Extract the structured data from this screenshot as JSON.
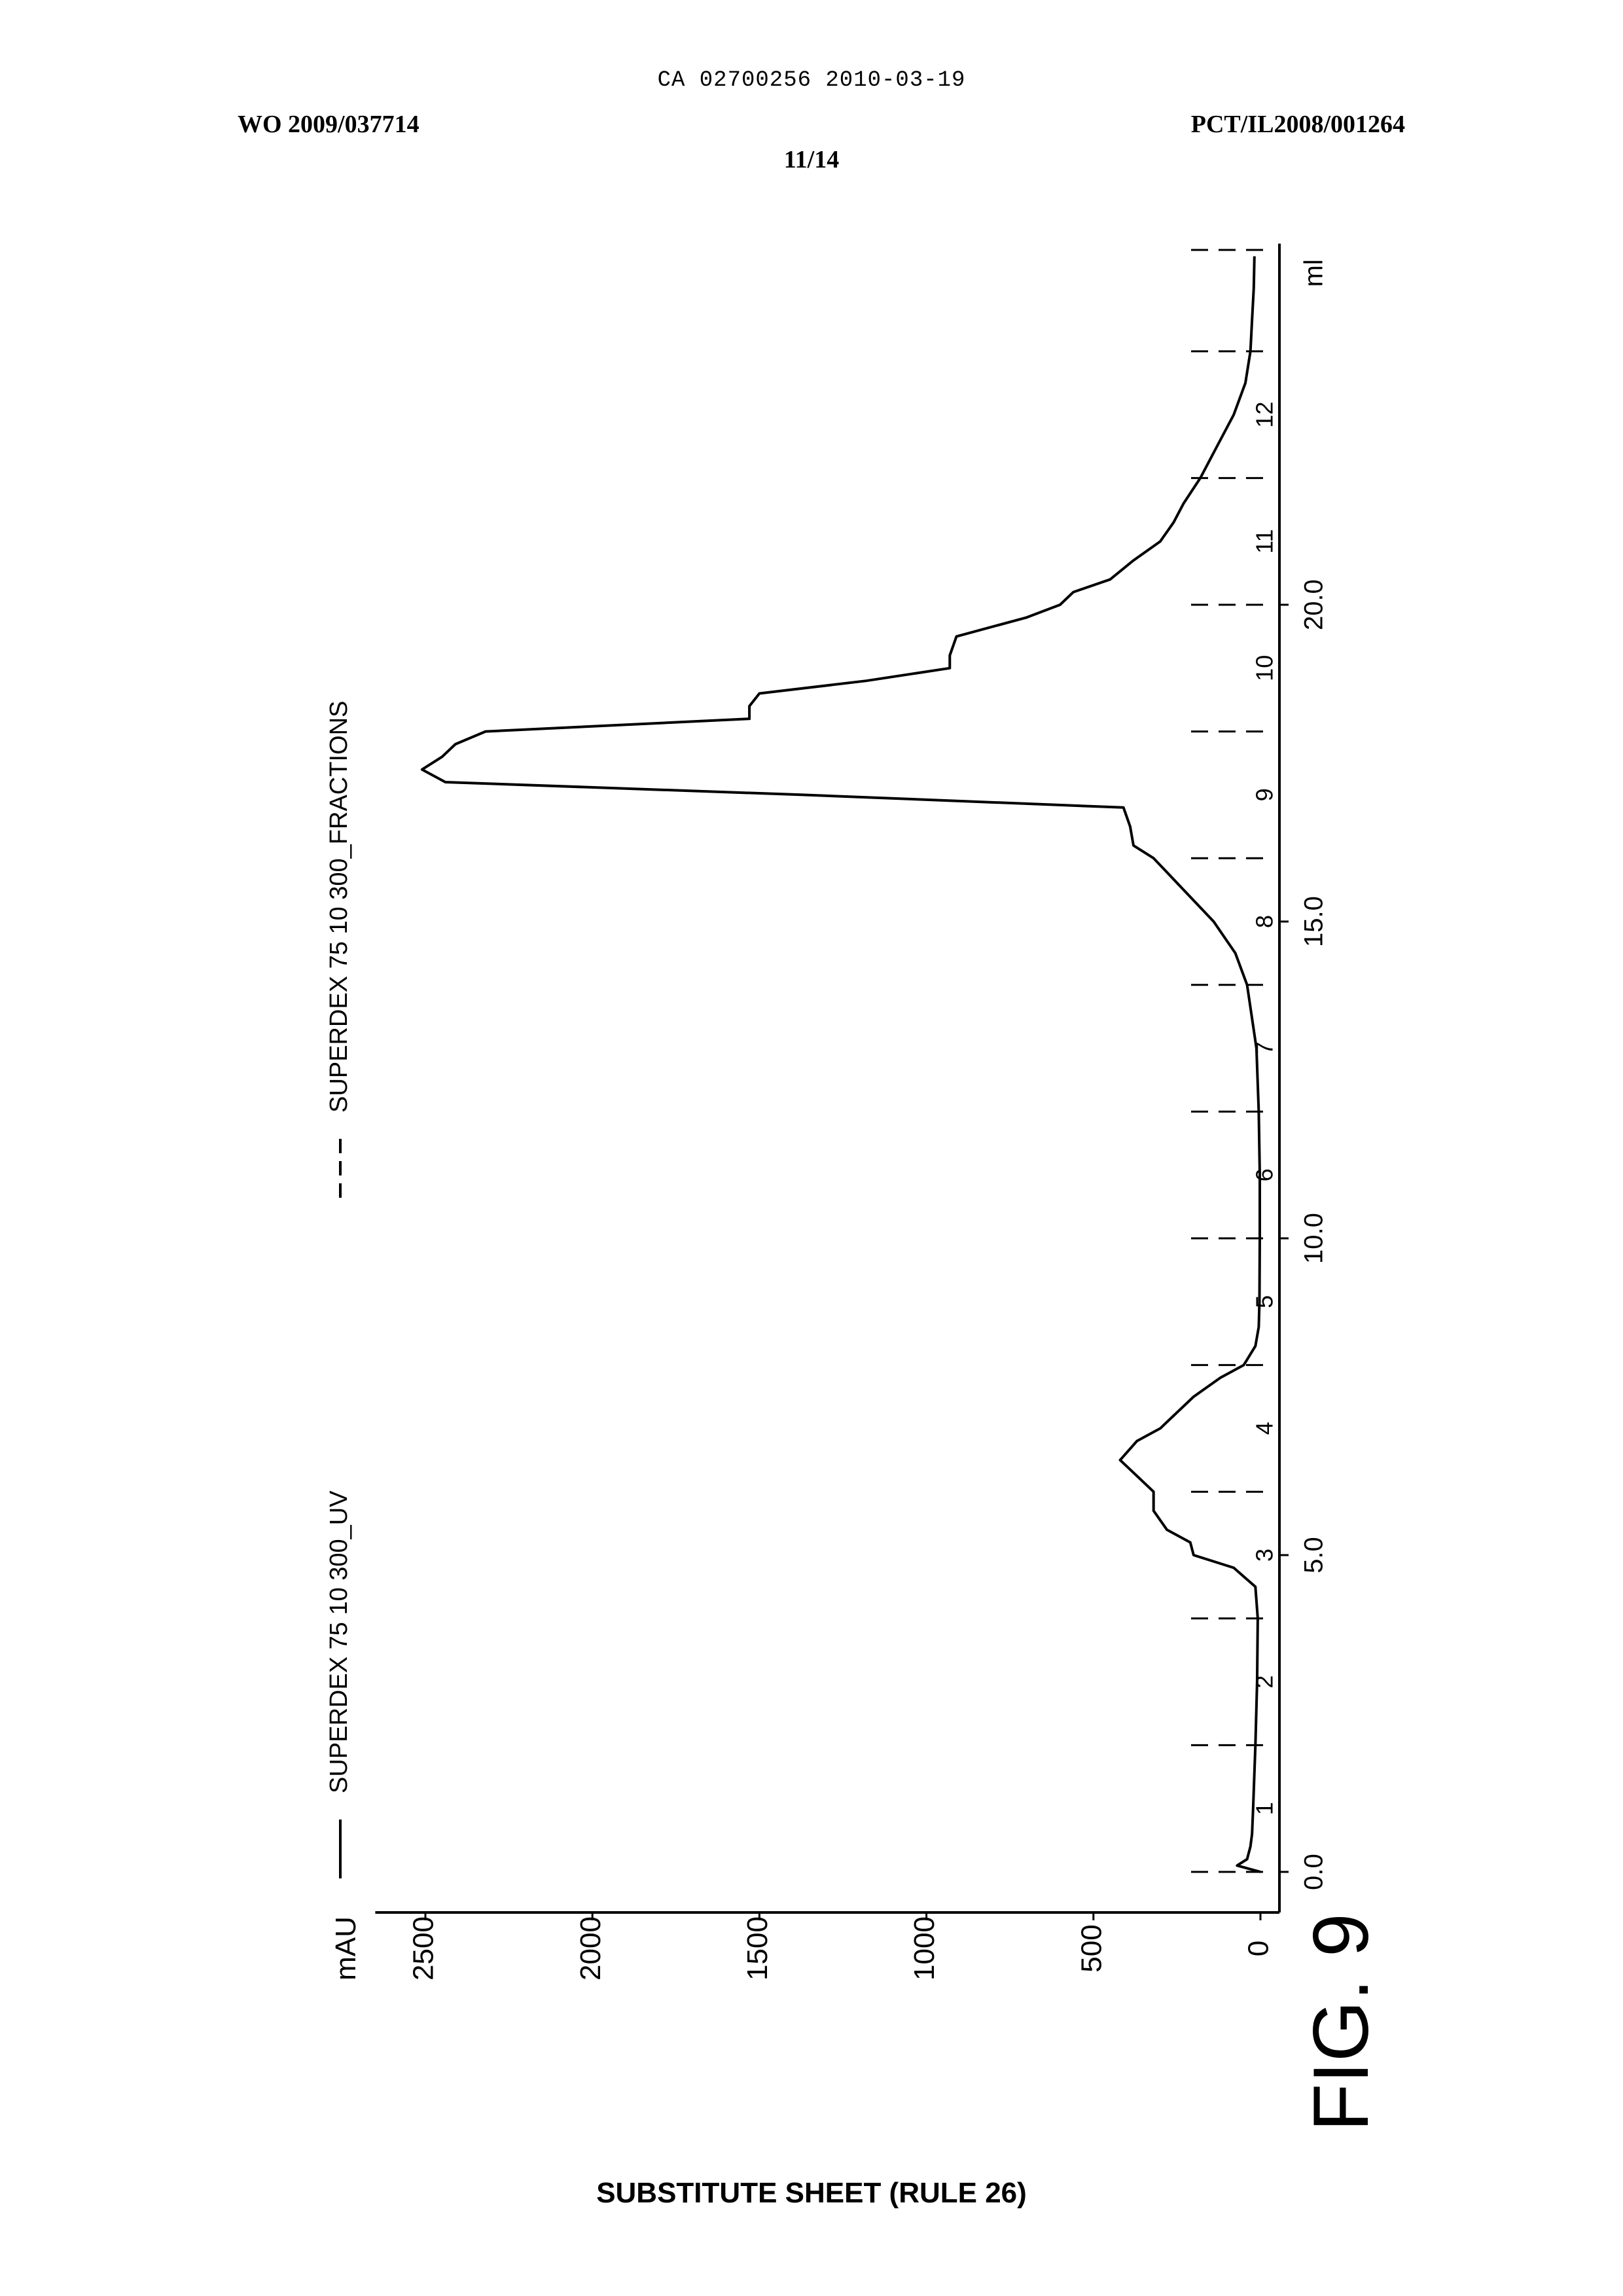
{
  "header": {
    "ca_number": "CA 02700256 2010-03-19",
    "wo_number": "WO 2009/037714",
    "pct_number": "PCT/IL2008/001264",
    "sheet": "11/14"
  },
  "footer": "SUBSTITUTE SHEET (RULE 26)",
  "figure_label": "FIG. 9",
  "chart_data": {
    "type": "line",
    "title": "",
    "xlabel": "ml",
    "ylabel": "mAU",
    "xlim": [
      -0.4,
      25.7
    ],
    "ylim": [
      -80,
      2650
    ],
    "x_ticks": [
      0.0,
      5.0,
      10.0,
      15.0,
      20.0
    ],
    "x_tick_labels": [
      "0.0",
      "5.0",
      "10.0",
      "15.0",
      "20.0"
    ],
    "y_ticks": [
      0,
      500,
      1000,
      1500,
      2000,
      2500
    ],
    "y_tick_labels": [
      "0",
      "500",
      "1000",
      "1500",
      "2000",
      "2500"
    ],
    "legend": {
      "placement": "top",
      "entries": [
        {
          "label": "SUPERDEX 75 10 300_UV",
          "style": "solid"
        },
        {
          "label": "SUPERDEX 75 10 300_FRACTIONS",
          "style": "dashed"
        }
      ]
    },
    "fractions": {
      "boundaries": [
        0.0,
        2.0,
        4.0,
        6.0,
        8.0,
        10.0,
        12.0,
        14.0,
        16.0,
        18.0,
        20.0,
        22.0,
        24.0,
        25.6
      ],
      "labels": [
        {
          "x": 1.0,
          "text": "1"
        },
        {
          "x": 3.0,
          "text": "2"
        },
        {
          "x": 5.0,
          "text": "3"
        },
        {
          "x": 7.0,
          "text": "4"
        },
        {
          "x": 9.0,
          "text": "5"
        },
        {
          "x": 11.0,
          "text": "6"
        },
        {
          "x": 13.0,
          "text": "7"
        },
        {
          "x": 15.0,
          "text": "8"
        },
        {
          "x": 17.0,
          "text": "9"
        },
        {
          "x": 19.0,
          "text": "10"
        },
        {
          "x": 21.0,
          "text": "11"
        },
        {
          "x": 23.0,
          "text": "12"
        }
      ]
    },
    "series": [
      {
        "name": "SUPERDEX 75 10 300_UV",
        "x": [
          0.0,
          0.1,
          0.2,
          0.4,
          0.6,
          1.0,
          2.0,
          3.0,
          4.0,
          4.5,
          4.8,
          5.0,
          5.2,
          5.4,
          5.7,
          6.0,
          6.2,
          6.5,
          6.8,
          7.0,
          7.2,
          7.5,
          7.8,
          8.0,
          8.3,
          8.6,
          9.0,
          10.0,
          11.0,
          12.0,
          13.0,
          14.0,
          14.5,
          15.0,
          15.5,
          16.0,
          16.2,
          16.5,
          16.8,
          17.0,
          17.2,
          17.4,
          17.6,
          17.8,
          18.0,
          18.2,
          18.4,
          18.6,
          18.8,
          19.0,
          19.2,
          19.5,
          19.8,
          20.0,
          20.2,
          20.4,
          20.7,
          21.0,
          21.3,
          21.6,
          22.0,
          22.5,
          23.0,
          23.5,
          24.0,
          24.5,
          25.0,
          25.5
        ],
        "y": [
          0,
          70,
          40,
          30,
          25,
          22,
          15,
          10,
          8,
          15,
          80,
          200,
          210,
          280,
          320,
          320,
          360,
          420,
          370,
          300,
          260,
          200,
          120,
          50,
          15,
          5,
          3,
          2,
          2,
          5,
          12,
          40,
          75,
          140,
          230,
          320,
          380,
          390,
          410,
          1370,
          2440,
          2510,
          2450,
          2410,
          2320,
          1530,
          1530,
          1500,
          1180,
          930,
          930,
          910,
          700,
          600,
          560,
          450,
          380,
          300,
          260,
          230,
          180,
          130,
          80,
          45,
          30,
          25,
          20,
          18
        ]
      }
    ]
  }
}
